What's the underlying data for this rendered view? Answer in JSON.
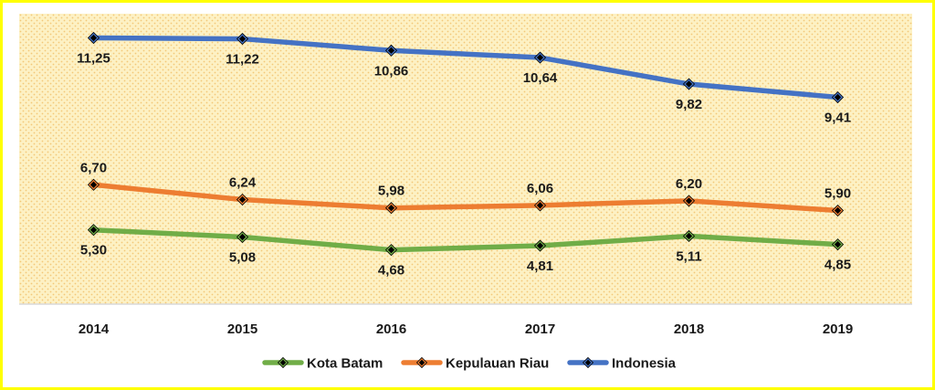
{
  "chart_data": {
    "type": "line",
    "title": "",
    "xlabel": "",
    "ylabel": "",
    "categories": [
      "2014",
      "2015",
      "2016",
      "2017",
      "2018",
      "2019"
    ],
    "ylim": [
      3,
      12
    ],
    "grid": false,
    "legend_position": "bottom",
    "series": [
      {
        "name": "Kota Batam",
        "color": "#70ad47",
        "values": [
          5.3,
          5.08,
          4.68,
          4.81,
          5.11,
          4.85
        ],
        "labels": [
          "5,30",
          "5,08",
          "4,68",
          "4,81",
          "5,11",
          "4,85"
        ],
        "label_position": "below"
      },
      {
        "name": "Kepulauan Riau",
        "color": "#ed7d31",
        "values": [
          6.7,
          6.24,
          5.98,
          6.06,
          6.2,
          5.9
        ],
        "labels": [
          "6,70",
          "6,24",
          "5,98",
          "6,06",
          "6,20",
          "5,90"
        ],
        "label_position": "above"
      },
      {
        "name": "Indonesia",
        "color": "#4472c4",
        "values": [
          11.25,
          11.22,
          10.86,
          10.64,
          9.82,
          9.41
        ],
        "labels": [
          "11,25",
          "11,22",
          "10,86",
          "10,64",
          "9,82",
          "9,41"
        ],
        "label_position": "below"
      }
    ],
    "plot_background": "#fdf1c4",
    "plot_pattern_color": "#f3c879",
    "frame_border_color": "#ffff00",
    "axis_color": "#d9d9d9",
    "marker_color": "#000000"
  }
}
